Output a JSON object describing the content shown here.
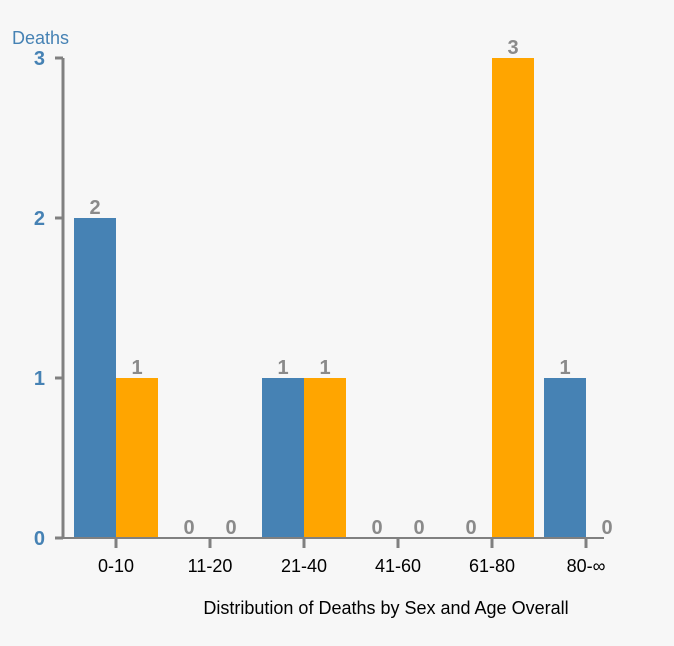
{
  "chart_data": {
    "type": "bar",
    "xlabel": "Distribution of Deaths by Sex and Age Overall",
    "ylabel": "Deaths",
    "categories": [
      "0-10",
      "11-20",
      "21-40",
      "41-60",
      "61-80",
      "80-∞"
    ],
    "series": [
      {
        "values": [
          2,
          0,
          1,
          0,
          0,
          1
        ],
        "color": "#4682b4"
      },
      {
        "values": [
          1,
          0,
          1,
          0,
          3,
          0
        ],
        "color": "#ffa500"
      }
    ],
    "ylim": [
      0,
      3
    ],
    "yticks": [
      0,
      1,
      2,
      3
    ],
    "grid": false
  }
}
